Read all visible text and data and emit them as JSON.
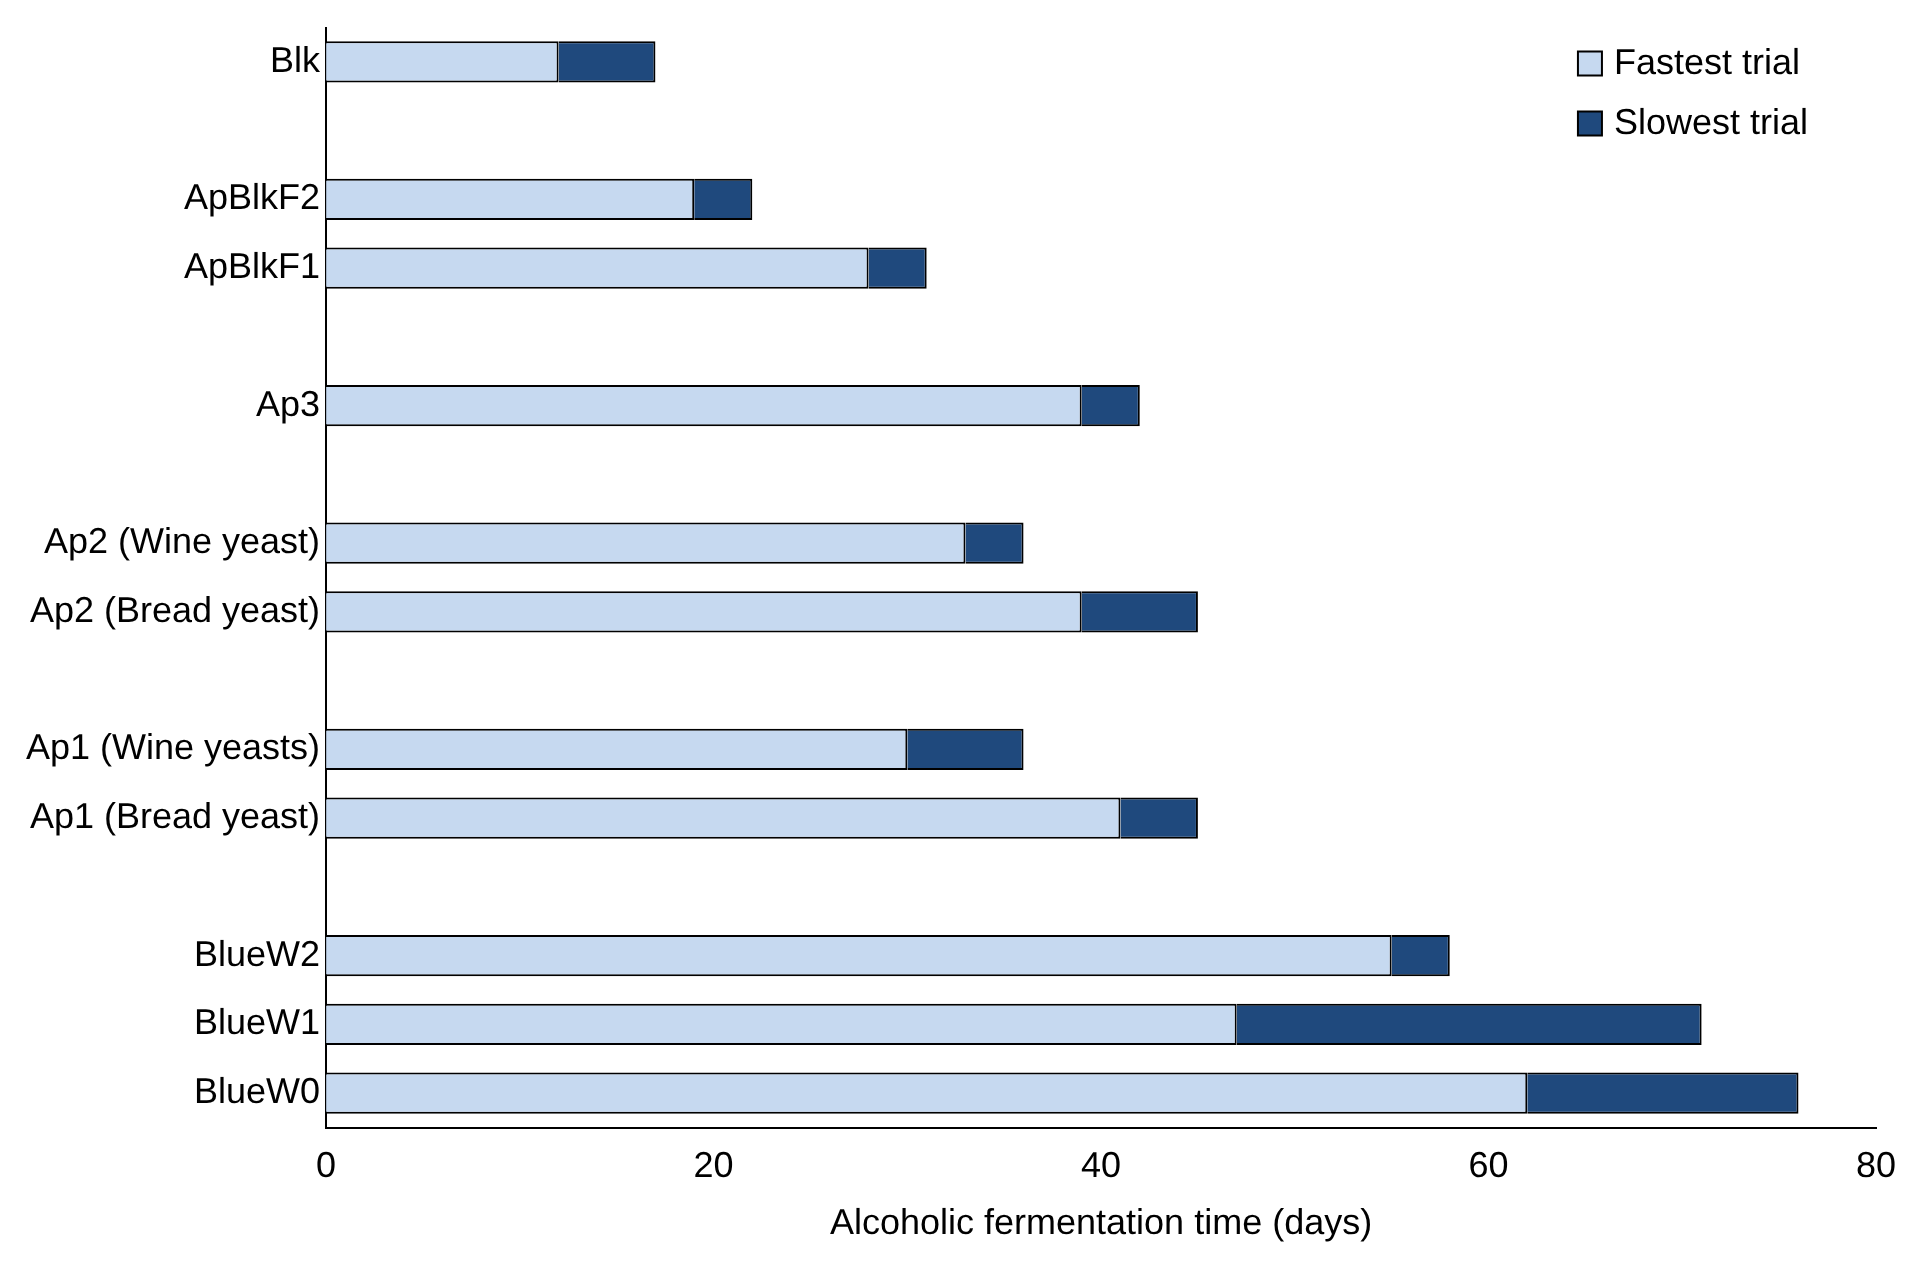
{
  "chart_data": {
    "type": "bar",
    "orientation": "horizontal",
    "stacked": true,
    "xlabel": "Alcoholic fermentation time (days)",
    "categories": [
      "Blk",
      null,
      "ApBlkF2",
      "ApBlkF1",
      null,
      "Ap3",
      null,
      "Ap2 (Wine yeast)",
      "Ap2 (Bread yeast)",
      null,
      "Ap1 (Wine yeasts)",
      "Ap1 (Bread yeast)",
      null,
      "BlueW2",
      "BlueW1",
      "BlueW0"
    ],
    "series": [
      {
        "name": "Fastest trial",
        "color": "#c6d9f0",
        "values": [
          12,
          null,
          19,
          28,
          null,
          39,
          null,
          33,
          39,
          null,
          30,
          41,
          null,
          55,
          47,
          62
        ]
      },
      {
        "name": "Slowest trial",
        "color": "#1f497d",
        "values": [
          5,
          null,
          3,
          3,
          null,
          3,
          null,
          3,
          6,
          null,
          6,
          4,
          null,
          3,
          24,
          14
        ]
      }
    ],
    "xlim": [
      0,
      80
    ],
    "xticks": [
      0,
      20,
      40,
      60,
      80
    ],
    "grid": false,
    "legend": "top right"
  }
}
